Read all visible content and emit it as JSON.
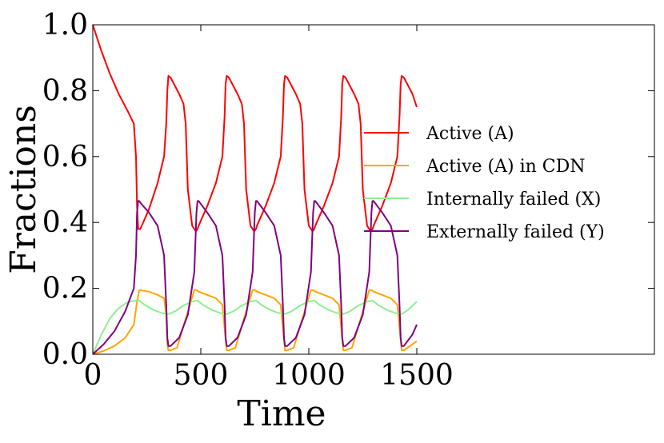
{
  "chart_data": {
    "type": "line",
    "title": "",
    "xlabel": "Time",
    "ylabel": "Fractions",
    "xlim": [
      0,
      2600
    ],
    "ylim": [
      0.0,
      1.0
    ],
    "xticks": [
      "0",
      "500",
      "1000",
      "1500"
    ],
    "yticks": [
      "0.0",
      "0.2",
      "0.4",
      "0.6",
      "0.8",
      "1.0"
    ],
    "legend_position": "center-right",
    "series": [
      {
        "name": "Active (A)",
        "color": "#ff0000",
        "x": [
          0,
          40,
          80,
          120,
          160,
          190,
          200,
          205,
          210,
          215,
          220,
          260,
          300,
          330,
          340,
          345,
          350,
          360,
          400,
          420,
          430,
          440,
          460,
          475,
          480,
          485,
          490,
          530,
          570,
          600,
          610,
          615,
          620,
          630,
          670,
          690,
          700,
          710,
          730,
          745,
          750,
          755,
          760,
          800,
          840,
          870,
          880,
          885,
          890,
          900,
          940,
          960,
          970,
          980,
          1000,
          1015,
          1020,
          1025,
          1030,
          1070,
          1110,
          1140,
          1150,
          1155,
          1160,
          1170,
          1210,
          1230,
          1240,
          1250,
          1270,
          1285,
          1290,
          1295,
          1300,
          1340,
          1380,
          1410,
          1420,
          1425,
          1430,
          1440,
          1480,
          1500
        ],
        "values": [
          1.0,
          0.92,
          0.85,
          0.79,
          0.74,
          0.7,
          0.6,
          0.45,
          0.38,
          0.38,
          0.38,
          0.44,
          0.52,
          0.6,
          0.7,
          0.8,
          0.845,
          0.84,
          0.79,
          0.76,
          0.7,
          0.5,
          0.39,
          0.375,
          0.375,
          0.38,
          0.39,
          0.45,
          0.52,
          0.6,
          0.72,
          0.82,
          0.845,
          0.84,
          0.79,
          0.76,
          0.7,
          0.5,
          0.39,
          0.375,
          0.375,
          0.38,
          0.39,
          0.45,
          0.52,
          0.6,
          0.72,
          0.82,
          0.845,
          0.84,
          0.79,
          0.76,
          0.7,
          0.5,
          0.39,
          0.375,
          0.375,
          0.38,
          0.39,
          0.45,
          0.52,
          0.6,
          0.72,
          0.82,
          0.845,
          0.84,
          0.79,
          0.76,
          0.7,
          0.5,
          0.39,
          0.375,
          0.375,
          0.38,
          0.39,
          0.45,
          0.52,
          0.6,
          0.72,
          0.82,
          0.845,
          0.84,
          0.79,
          0.75
        ]
      },
      {
        "name": "Active (A) in CDN",
        "color": "#ffa500",
        "x": [
          0,
          50,
          100,
          150,
          190,
          205,
          215,
          260,
          300,
          330,
          340,
          345,
          350,
          360,
          390,
          470,
          480,
          490,
          530,
          570,
          600,
          610,
          620,
          630,
          660,
          740,
          750,
          760,
          800,
          840,
          870,
          880,
          890,
          900,
          930,
          1010,
          1020,
          1030,
          1070,
          1110,
          1140,
          1150,
          1160,
          1170,
          1200,
          1280,
          1290,
          1300,
          1340,
          1380,
          1410,
          1420,
          1430,
          1440,
          1480,
          1500
        ],
        "values": [
          0.0,
          0.01,
          0.025,
          0.05,
          0.09,
          0.16,
          0.195,
          0.19,
          0.18,
          0.17,
          0.12,
          0.03,
          0.012,
          0.012,
          0.02,
          0.195,
          0.195,
          0.19,
          0.18,
          0.17,
          0.15,
          0.08,
          0.012,
          0.012,
          0.02,
          0.195,
          0.195,
          0.19,
          0.18,
          0.17,
          0.15,
          0.08,
          0.012,
          0.012,
          0.02,
          0.195,
          0.195,
          0.19,
          0.18,
          0.17,
          0.15,
          0.08,
          0.012,
          0.012,
          0.02,
          0.195,
          0.195,
          0.19,
          0.18,
          0.17,
          0.15,
          0.08,
          0.012,
          0.012,
          0.03,
          0.04
        ]
      },
      {
        "name": "Internally failed (X)",
        "color": "#90ee90",
        "x": [
          0,
          40,
          80,
          120,
          160,
          200,
          215,
          240,
          280,
          320,
          350,
          380,
          420,
          460,
          485,
          510,
          550,
          590,
          620,
          650,
          690,
          730,
          755,
          780,
          820,
          860,
          890,
          920,
          960,
          1000,
          1025,
          1050,
          1090,
          1130,
          1160,
          1190,
          1230,
          1270,
          1295,
          1320,
          1360,
          1400,
          1430,
          1460,
          1500
        ],
        "values": [
          0.0,
          0.06,
          0.11,
          0.14,
          0.158,
          0.163,
          0.163,
          0.15,
          0.135,
          0.125,
          0.122,
          0.13,
          0.148,
          0.16,
          0.163,
          0.15,
          0.135,
          0.125,
          0.122,
          0.13,
          0.148,
          0.16,
          0.163,
          0.15,
          0.135,
          0.125,
          0.122,
          0.13,
          0.148,
          0.16,
          0.163,
          0.15,
          0.135,
          0.125,
          0.122,
          0.13,
          0.148,
          0.16,
          0.163,
          0.15,
          0.135,
          0.125,
          0.122,
          0.135,
          0.16
        ]
      },
      {
        "name": "Externally failed (Y)",
        "color": "#800080",
        "x": [
          0,
          50,
          100,
          150,
          190,
          200,
          205,
          210,
          215,
          220,
          260,
          300,
          330,
          340,
          345,
          350,
          360,
          400,
          440,
          470,
          480,
          485,
          490,
          530,
          570,
          600,
          610,
          615,
          620,
          630,
          670,
          710,
          740,
          750,
          755,
          760,
          800,
          840,
          870,
          880,
          885,
          890,
          900,
          940,
          980,
          1010,
          1020,
          1025,
          1030,
          1070,
          1110,
          1140,
          1150,
          1155,
          1160,
          1170,
          1210,
          1250,
          1280,
          1290,
          1295,
          1300,
          1340,
          1380,
          1410,
          1420,
          1425,
          1430,
          1440,
          1480,
          1500
        ],
        "values": [
          0.0,
          0.03,
          0.07,
          0.13,
          0.2,
          0.3,
          0.43,
          0.465,
          0.465,
          0.46,
          0.43,
          0.39,
          0.3,
          0.15,
          0.05,
          0.025,
          0.025,
          0.05,
          0.12,
          0.25,
          0.43,
          0.465,
          0.465,
          0.43,
          0.39,
          0.3,
          0.15,
          0.05,
          0.025,
          0.025,
          0.05,
          0.12,
          0.25,
          0.43,
          0.465,
          0.465,
          0.43,
          0.39,
          0.3,
          0.15,
          0.05,
          0.025,
          0.025,
          0.05,
          0.12,
          0.25,
          0.43,
          0.465,
          0.465,
          0.43,
          0.39,
          0.3,
          0.15,
          0.05,
          0.025,
          0.025,
          0.05,
          0.12,
          0.25,
          0.43,
          0.465,
          0.465,
          0.43,
          0.39,
          0.3,
          0.15,
          0.05,
          0.025,
          0.025,
          0.06,
          0.09
        ]
      }
    ]
  }
}
